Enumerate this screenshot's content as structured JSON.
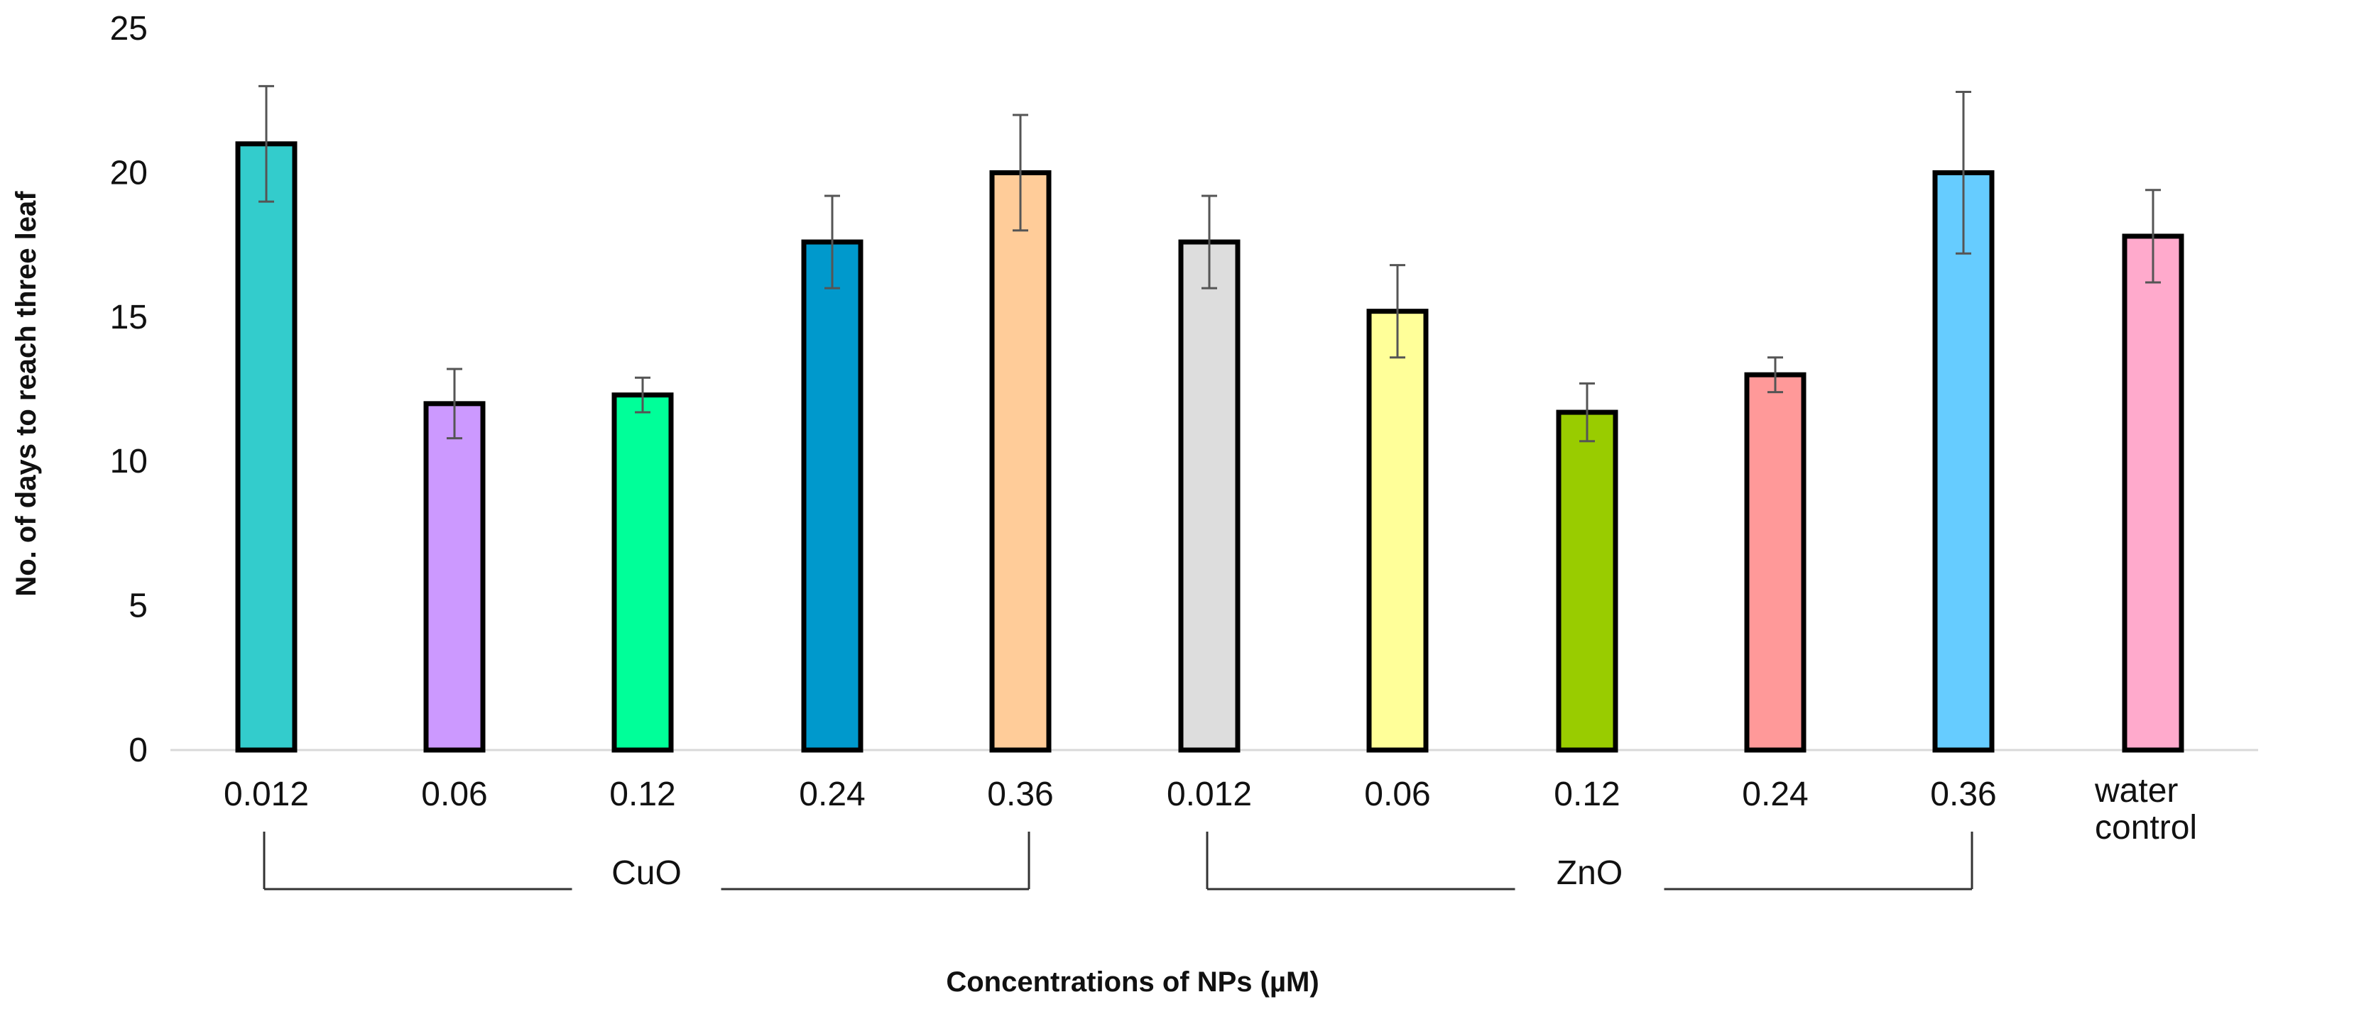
{
  "chart_data": {
    "type": "bar",
    "title": "",
    "xlabel": "Concentrations of NPs (µM)",
    "ylabel": "No. of days to reach three leaf",
    "ylim": [
      0,
      25
    ],
    "yticks": [
      0,
      5,
      10,
      15,
      20,
      25
    ],
    "grid": false,
    "legend": "none",
    "bars": [
      {
        "label": "0.012",
        "value": 21.0,
        "error": 2.0,
        "color": "#33CCCC"
      },
      {
        "label": "0.06",
        "value": 12.0,
        "error": 1.2,
        "color": "#CC99FF"
      },
      {
        "label": "0.12",
        "value": 12.3,
        "error": 0.6,
        "color": "#00FF99"
      },
      {
        "label": "0.24",
        "value": 17.6,
        "error": 1.6,
        "color": "#0099CC"
      },
      {
        "label": "0.36",
        "value": 20.0,
        "error": 2.0,
        "color": "#FFCC99"
      },
      {
        "label": "0.012",
        "value": 17.6,
        "error": 1.6,
        "color": "#DDDDDD"
      },
      {
        "label": "0.06",
        "value": 15.2,
        "error": 1.6,
        "color": "#FFFF99"
      },
      {
        "label": "0.12",
        "value": 11.7,
        "error": 1.0,
        "color": "#99CC00"
      },
      {
        "label": "0.24",
        "value": 13.0,
        "error": 0.6,
        "color": "#FF9999"
      },
      {
        "label": "0.36",
        "value": 20.0,
        "error": 2.8,
        "color": "#66CCFF"
      },
      {
        "label": "water\ncontrol",
        "value": 17.8,
        "error": 1.6,
        "color": "#FFAACC"
      }
    ],
    "groups": [
      {
        "label": "CuO",
        "from": 0,
        "to": 4
      },
      {
        "label": "ZnO",
        "from": 5,
        "to": 9
      }
    ]
  }
}
